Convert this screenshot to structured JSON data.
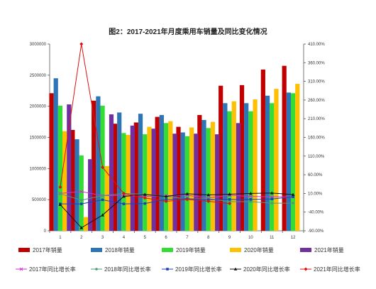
{
  "chart_data": {
    "type": "bar",
    "title": "图2：2017-2021年月度乘用车销量及同比变化情况",
    "categories": [
      "1",
      "2",
      "3",
      "4",
      "5",
      "6",
      "7",
      "8",
      "9",
      "10",
      "11",
      "12"
    ],
    "ylim": [
      0,
      3000000
    ],
    "y2lim": [
      -90,
      410
    ],
    "yticks": [
      "0",
      "500000",
      "1000000",
      "1500000",
      "2000000",
      "2500000",
      "3000000"
    ],
    "y2ticks": [
      "-90.00%",
      "-40.00%",
      "10.00%",
      "60.00%",
      "110.00%",
      "160.00%",
      "210.00%",
      "260.00%",
      "310.00%",
      "360.00%",
      "410.00%"
    ],
    "grid": false,
    "legend_position": "bottom",
    "series": [
      {
        "name": "2017年销量",
        "color": "#C00000",
        "values": [
          2210000,
          1620000,
          2090000,
          1720000,
          1740000,
          1830000,
          1670000,
          1860000,
          2330000,
          2340000,
          2590000,
          2650000
        ]
      },
      {
        "name": "2018年销量",
        "color": "#2E75B6",
        "values": [
          2450000,
          1470000,
          2160000,
          1900000,
          1880000,
          1860000,
          1580000,
          1780000,
          2050000,
          2050000,
          2170000,
          2220000
        ]
      },
      {
        "name": "2019年销量",
        "color": "#33DD33",
        "values": [
          2010000,
          1210000,
          2010000,
          1570000,
          1550000,
          1730000,
          1520000,
          1650000,
          1920000,
          1920000,
          2050000,
          2210000
        ]
      },
      {
        "name": "2020年销量",
        "color": "#FFC000",
        "values": [
          1600000,
          220000,
          1040000,
          1540000,
          1670000,
          1760000,
          1660000,
          1750000,
          2080000,
          2110000,
          2280000,
          2360000
        ]
      },
      {
        "name": "2021年销量",
        "color": "#7030A0",
        "values": [
          2030000,
          1150000,
          1870000,
          1690000,
          1640000,
          1560000,
          1560000,
          1550000,
          1730000,
          null,
          null,
          null
        ]
      }
    ],
    "rate_series": [
      {
        "name": "2017年同比增长率",
        "color": "#CC33CC",
        "marker": "x",
        "values": [
          10,
          15,
          4,
          4,
          2,
          4,
          5,
          -2,
          5,
          2,
          1,
          1
        ]
      },
      {
        "name": "2018年同比增长率",
        "color": "#559977",
        "marker": "dot",
        "values": [
          9,
          -8,
          4,
          10,
          8,
          2,
          -5,
          -4,
          -12,
          -12,
          -16,
          -16
        ]
      },
      {
        "name": "2019年同比增长率",
        "color": "#1F3FBF",
        "marker": "square",
        "values": [
          -18,
          -18,
          -7,
          -18,
          -17,
          -6,
          -4,
          -7,
          -6,
          -6,
          -5,
          1
        ]
      },
      {
        "name": "2020年同比增长率",
        "color": "#111111",
        "marker": "triangle",
        "values": [
          -20,
          -82,
          -48,
          2,
          7,
          2,
          9,
          6,
          8,
          10,
          11,
          7
        ]
      },
      {
        "name": "2021年同比增长率",
        "color": "#DD1111",
        "marker": "diamond",
        "values": [
          27,
          410,
          80,
          10,
          -2,
          -11,
          -6,
          -11,
          -17,
          null,
          null,
          null
        ]
      }
    ]
  }
}
